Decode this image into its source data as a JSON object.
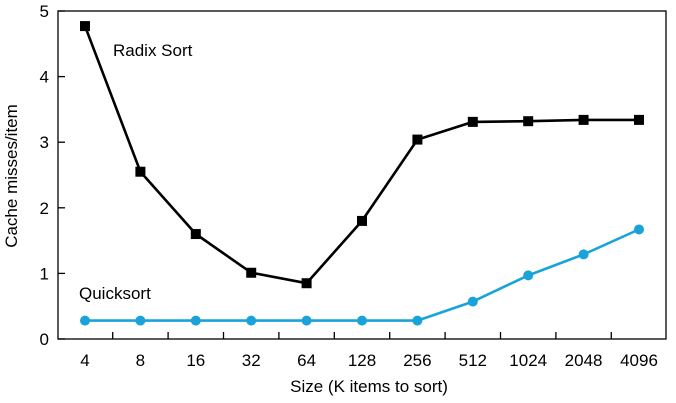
{
  "chart_data": {
    "type": "line",
    "xlabel": "Size (K items to sort)",
    "ylabel": "Cache misses/item",
    "categories": [
      "4",
      "8",
      "16",
      "32",
      "64",
      "128",
      "256",
      "512",
      "1024",
      "2048",
      "4096"
    ],
    "ylim": [
      0,
      5
    ],
    "yticks": [
      "0",
      "1",
      "2",
      "3",
      "4",
      "5"
    ],
    "x_scale": "log2",
    "grid": false,
    "legend": "none",
    "series": [
      {
        "name": "Radix Sort",
        "color": "#000000",
        "marker": "square",
        "values": [
          4.77,
          2.55,
          1.6,
          1.01,
          0.85,
          1.8,
          3.04,
          3.31,
          3.32,
          3.34,
          3.34
        ]
      },
      {
        "name": "Quicksort",
        "color": "#1aa3d9",
        "marker": "circle",
        "values": [
          0.28,
          0.28,
          0.28,
          0.28,
          0.28,
          0.28,
          0.28,
          0.57,
          0.97,
          1.29,
          1.67
        ]
      }
    ]
  }
}
